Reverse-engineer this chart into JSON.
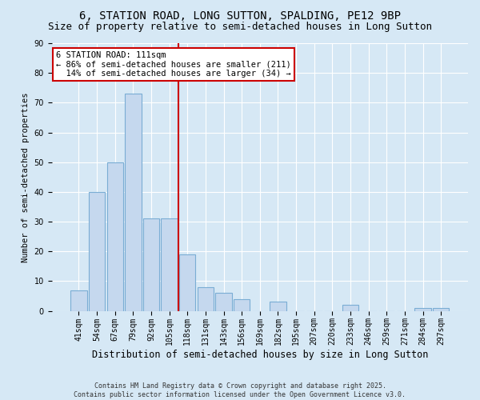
{
  "title": "6, STATION ROAD, LONG SUTTON, SPALDING, PE12 9BP",
  "subtitle": "Size of property relative to semi-detached houses in Long Sutton",
  "xlabel": "Distribution of semi-detached houses by size in Long Sutton",
  "ylabel": "Number of semi-detached properties",
  "categories": [
    "41sqm",
    "54sqm",
    "67sqm",
    "79sqm",
    "92sqm",
    "105sqm",
    "118sqm",
    "131sqm",
    "143sqm",
    "156sqm",
    "169sqm",
    "182sqm",
    "195sqm",
    "207sqm",
    "220sqm",
    "233sqm",
    "246sqm",
    "259sqm",
    "271sqm",
    "284sqm",
    "297sqm"
  ],
  "values": [
    7,
    40,
    50,
    73,
    31,
    31,
    19,
    8,
    6,
    4,
    0,
    3,
    0,
    0,
    0,
    2,
    0,
    0,
    0,
    1,
    1
  ],
  "bar_color": "#c5d8ee",
  "bar_edge_color": "#7aadd4",
  "vline_x_index": 6.0,
  "vline_color": "#cc0000",
  "annotation_line1": "6 STATION ROAD: 111sqm",
  "annotation_line2": "← 86% of semi-detached houses are smaller (211)",
  "annotation_line3": "  14% of semi-detached houses are larger (34) →",
  "annotation_box_color": "#ffffff",
  "annotation_box_edge_color": "#cc0000",
  "ylim": [
    0,
    90
  ],
  "yticks": [
    0,
    10,
    20,
    30,
    40,
    50,
    60,
    70,
    80,
    90
  ],
  "background_color": "#d6e8f5",
  "plot_background_color": "#d6e8f5",
  "footer_text": "Contains HM Land Registry data © Crown copyright and database right 2025.\nContains public sector information licensed under the Open Government Licence v3.0.",
  "title_fontsize": 10,
  "subtitle_fontsize": 9,
  "xlabel_fontsize": 8.5,
  "ylabel_fontsize": 7.5,
  "tick_fontsize": 7,
  "annotation_fontsize": 7.5,
  "footer_fontsize": 6
}
